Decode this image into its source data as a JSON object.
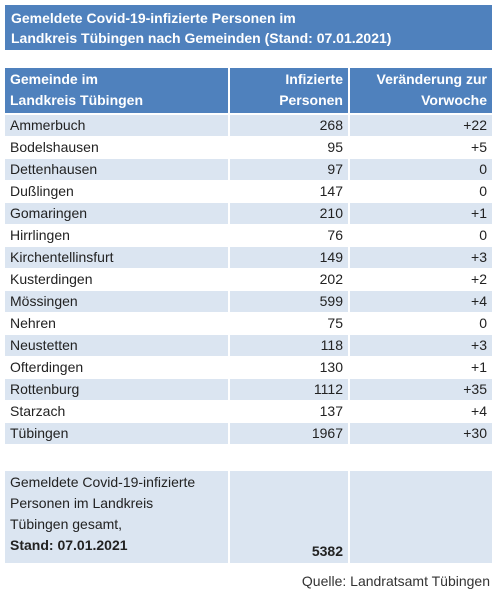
{
  "title": [
    "Gemeldete Covid-19-infizierte Personen im",
    "Landkreis Tübingen nach Gemeinden (Stand: 07.01.2021)"
  ],
  "table": {
    "header": [
      [
        "Gemeinde im",
        "Landkreis Tübingen"
      ],
      [
        "Infizierte",
        "Personen"
      ],
      [
        "Veränderung zur",
        "Vorwoche"
      ]
    ],
    "rows": [
      [
        "Ammerbuch",
        "268",
        "+22"
      ],
      [
        "Bodelshausen",
        "95",
        "+5"
      ],
      [
        "Dettenhausen",
        "97",
        "0"
      ],
      [
        "Dußlingen",
        "147",
        "0"
      ],
      [
        "Gomaringen",
        "210",
        "+1"
      ],
      [
        "Hirrlingen",
        "76",
        "0"
      ],
      [
        "Kirchentellinsfurt",
        "149",
        "+3"
      ],
      [
        "Kusterdingen",
        "202",
        "+2"
      ],
      [
        "Mössingen",
        "599",
        "+4"
      ],
      [
        "Nehren",
        "75",
        "0"
      ],
      [
        "Neustetten",
        "118",
        "+3"
      ],
      [
        "Ofterdingen",
        "130",
        "+1"
      ],
      [
        "Rottenburg",
        "1112",
        "+35"
      ],
      [
        "Starzach",
        "137",
        "+4"
      ],
      [
        "Tübingen",
        "1967",
        "+30"
      ]
    ],
    "total": {
      "label": [
        "Gemeldete Covid-19-infizierte",
        "Personen im Landkreis",
        "Tübingen gesamt,"
      ],
      "stand": "Stand: 07.01.2021",
      "value": "5382"
    }
  },
  "source": "Quelle: Landratsamt Tübingen"
}
